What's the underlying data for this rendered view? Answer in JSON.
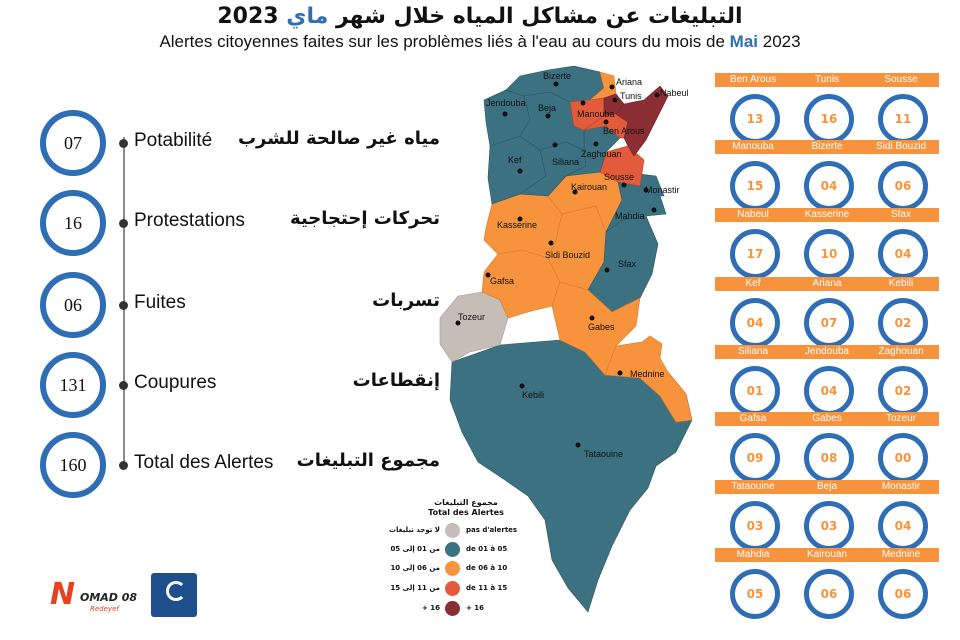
{
  "header": {
    "title_ar_main": "التبليغات عن مشاكل المياه خلال شهر",
    "title_ar_month": "ماي",
    "title_ar_year": "2023",
    "title_fr_main": "Alertes citoyennes faites sur les problèmes liés à l'eau au cours du mois de",
    "title_fr_month": "Mai",
    "title_fr_year": "2023"
  },
  "stats": [
    {
      "value": "07",
      "label_fr": "Potabilité",
      "label_ar": "مياه غير صالحة للشرب"
    },
    {
      "value": "16",
      "label_fr": "Protestations",
      "label_ar": "تحركات إحتجاجية"
    },
    {
      "value": "06",
      "label_fr": "Fuites",
      "label_ar": "تسربات"
    },
    {
      "value": "131",
      "label_fr": "Coupures",
      "label_ar": "إنقطاعات"
    },
    {
      "value": "160",
      "label_fr": "Total des Alertes",
      "label_ar": "مجموع التبليغات"
    }
  ],
  "colors": {
    "none": "#c6beb6",
    "low": "#3b7180",
    "mid": "#f7933d",
    "high": "#e25b3a",
    "top": "#8b2e33",
    "ring": "#2f6db5",
    "tag": "#f7933d"
  },
  "map_labels": [
    "Bizerte",
    "Ariana",
    "Tunis",
    "Nabeul",
    "Jendouba",
    "Beja",
    "Manouba",
    "Ben Arous",
    "Kef",
    "Siliana",
    "Zaghouan",
    "Sousse",
    "Monastir",
    "Kairouan",
    "Mahdia",
    "Kasserine",
    "Sidi Bouzid",
    "Sfax",
    "Gafsa",
    "Tozeur",
    "Gabes",
    "Mednine",
    "Kebili",
    "Tataouine"
  ],
  "legend": {
    "title_ar": "مجموع التبليغات",
    "title_fr": "Total des Alertes",
    "items": [
      {
        "ar": "لا توجد تبليغات",
        "fr": "pas d'alertes",
        "color": "#c6beb6"
      },
      {
        "ar": "من 01 إلى 05",
        "fr": "de 01 à 05",
        "color": "#3b7180"
      },
      {
        "ar": "من 06 إلى 10",
        "fr": "de 06 à 10",
        "color": "#f7933d"
      },
      {
        "ar": "من 11 إلى 15",
        "fr": "de 11 à 15",
        "color": "#e25b3a"
      },
      {
        "ar": "16 +",
        "fr": "+ 16",
        "color": "#8b2e33"
      }
    ]
  },
  "governorates": [
    {
      "name": "Ben Arous",
      "value": "13"
    },
    {
      "name": "Tunis",
      "value": "16"
    },
    {
      "name": "Sousse",
      "value": "11"
    },
    {
      "name": "Manouba",
      "value": "15"
    },
    {
      "name": "Bizerte",
      "value": "04"
    },
    {
      "name": "Sidi Bouzid",
      "value": "06"
    },
    {
      "name": "Nabeul",
      "value": "17"
    },
    {
      "name": "Kasserine",
      "value": "10"
    },
    {
      "name": "Sfax",
      "value": "04"
    },
    {
      "name": "Kef",
      "value": "04"
    },
    {
      "name": "Ariana",
      "value": "07"
    },
    {
      "name": "Kebili",
      "value": "02"
    },
    {
      "name": "Siliana",
      "value": "01"
    },
    {
      "name": "Jendouba",
      "value": "04"
    },
    {
      "name": "Zaghouan",
      "value": "02"
    },
    {
      "name": "Gafsa",
      "value": "09"
    },
    {
      "name": "Gabes",
      "value": "08"
    },
    {
      "name": "Tozeur",
      "value": "00"
    },
    {
      "name": "Tataouine",
      "value": "03"
    },
    {
      "name": "Beja",
      "value": "03"
    },
    {
      "name": "Monastir",
      "value": "04"
    },
    {
      "name": "Mahdia",
      "value": "05"
    },
    {
      "name": "Kairouan",
      "value": "06"
    },
    {
      "name": "Mednine",
      "value": "06"
    }
  ],
  "logos": {
    "nomad_text": "OMAD 08",
    "nomad_sub": "Redeyef"
  }
}
